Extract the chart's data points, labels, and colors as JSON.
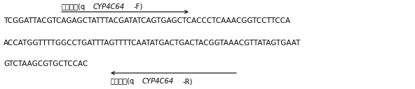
{
  "line1_seq": "TCGGATTACGTCAGAGCTATTTACGATATCAGTGAGCTCACCCTCAAACGGTCCTTCCA",
  "line2_seq": "ACCATGGTTTTGGCCTGATTTAGTTTTCAATATGACTGACTACGGTAAACGTTATAGTGAAT",
  "line3_seq": "GTCTAAGCGTGCTCCAC",
  "forward_label_normal1": "正向引物(q",
  "forward_label_italic": "CYP4C64",
  "forward_label_normal2": "-F)",
  "reverse_label_normal1": "反向引物(q",
  "reverse_label_italic": "CYP4C64",
  "reverse_label_normal2": "-R)",
  "bg_color": "#ffffff",
  "text_color": "#000000",
  "seq_fontsize": 7.5,
  "label_fontsize": 7.2,
  "fig_width": 5.92,
  "fig_height": 1.28,
  "dpi": 100
}
